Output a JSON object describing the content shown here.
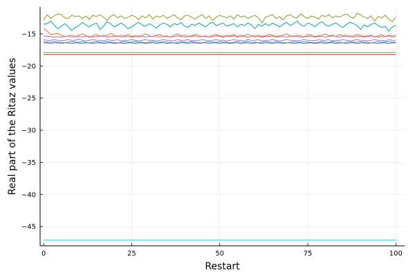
{
  "chart_data": {
    "type": "line",
    "title": "",
    "xlabel": "Restart",
    "ylabel": "Real part of the Ritaz values",
    "xlim": [
      -1,
      102.5
    ],
    "ylim": [
      -48.0,
      -10.8
    ],
    "xticks": [
      0,
      25,
      50,
      75,
      100
    ],
    "yticks": [
      -15,
      -20,
      -25,
      -30,
      -35,
      -40,
      -45
    ],
    "grid": true,
    "legend": "none",
    "colors": {
      "olive": "#8b9a1c",
      "teal": "#00a4a8",
      "orange": "#d2782c",
      "pink": "#e0608e",
      "purple": "#8a7ad6",
      "blue": "#4a88c8",
      "gray": "#6a6e72",
      "green": "#5aa654",
      "red": "#d04a38",
      "cyan": "#46c6e6"
    },
    "series": [
      {
        "color_key": "olive",
        "y": [
          -12.8,
          -12.0,
          -12.6,
          -12.2,
          -11.9,
          -12.0,
          -12.5,
          -12.6,
          -12.1,
          -12.3,
          -12.2,
          -12.6,
          -12.2,
          -12.8,
          -12.1,
          -12.3,
          -12.0,
          -12.4,
          -12.9,
          -12.3,
          -12.0,
          -12.5,
          -12.2,
          -12.6,
          -12.4,
          -12.1,
          -12.3,
          -12.8,
          -12.2,
          -12.5,
          -12.0,
          -12.7,
          -12.2,
          -12.4,
          -12.1,
          -12.6,
          -12.3,
          -12.0,
          -12.5,
          -12.8,
          -12.2,
          -12.1,
          -12.4,
          -12.7,
          -12.3,
          -12.0,
          -12.6,
          -12.2,
          -12.9,
          -12.4,
          -12.1,
          -12.3,
          -12.5,
          -12.2,
          -12.7,
          -12.0,
          -12.4,
          -12.2,
          -12.6,
          -12.3,
          -12.1,
          -12.5,
          -13.3,
          -12.4,
          -12.2,
          -12.0,
          -12.6,
          -12.3,
          -12.8,
          -12.2,
          -12.0,
          -12.4,
          -12.5,
          -11.9,
          -12.3,
          -12.6,
          -12.2,
          -12.4,
          -12.7,
          -12.1,
          -12.3,
          -12.0,
          -12.5,
          -12.2,
          -12.4,
          -12.1,
          -11.9,
          -12.3,
          -12.6,
          -11.8,
          -12.0,
          -12.4,
          -12.6,
          -12.2,
          -13.0,
          -12.3,
          -12.5,
          -12.1,
          -12.7,
          -13.1,
          -12.4
        ]
      },
      {
        "color_key": "teal",
        "y": [
          -13.5,
          -13.4,
          -13.0,
          -13.6,
          -14.2,
          -13.8,
          -13.4,
          -13.9,
          -14.5,
          -14.0,
          -13.7,
          -13.2,
          -13.6,
          -13.9,
          -13.5,
          -13.3,
          -14.3,
          -13.8,
          -13.1,
          -13.4,
          -13.9,
          -13.6,
          -13.3,
          -13.7,
          -14.2,
          -13.9,
          -13.5,
          -13.2,
          -13.6,
          -13.8,
          -13.4,
          -13.7,
          -14.1,
          -13.6,
          -13.3,
          -13.5,
          -13.9,
          -13.4,
          -13.6,
          -13.2,
          -13.8,
          -14.0,
          -13.5,
          -13.7,
          -13.3,
          -13.6,
          -13.9,
          -13.4,
          -13.2,
          -13.7,
          -13.5,
          -13.3,
          -13.8,
          -13.6,
          -13.4,
          -13.9,
          -13.5,
          -13.7,
          -13.3,
          -13.6,
          -14.2,
          -13.5,
          -13.8,
          -13.4,
          -13.7,
          -13.3,
          -13.6,
          -13.9,
          -13.5,
          -13.2,
          -13.7,
          -13.4,
          -13.0,
          -13.6,
          -13.8,
          -13.3,
          -13.5,
          -13.9,
          -13.4,
          -13.1,
          -13.6,
          -13.8,
          -13.5,
          -13.3,
          -13.7,
          -14.0,
          -13.5,
          -13.2,
          -13.4,
          -13.7,
          -14.3,
          -13.6,
          -13.9,
          -13.5,
          -13.3,
          -13.7,
          -14.0,
          -13.8,
          -14.6,
          -13.9,
          -13.7
        ]
      },
      {
        "color_key": "orange",
        "y": [
          -14.2,
          -14.6,
          -15.1,
          -15.0,
          -14.9,
          -15.2,
          -15.4,
          -15.3,
          -15.2,
          -15.4,
          -15.2,
          -15.0,
          -15.3,
          -15.5,
          -15.3,
          -15.1,
          -15.4,
          -15.2,
          -15.3,
          -14.9,
          -15.2,
          -15.4,
          -15.2,
          -15.3,
          -15.1,
          -15.4,
          -15.3,
          -15.5,
          -15.2,
          -15.0,
          -15.3,
          -15.4,
          -15.2,
          -15.1,
          -15.4,
          -15.3,
          -15.5,
          -15.2,
          -15.0,
          -15.3,
          -15.2,
          -15.4,
          -15.3,
          -15.1,
          -15.2,
          -15.4,
          -15.3,
          -15.5,
          -15.2,
          -15.1,
          -15.3,
          -15.4,
          -15.2,
          -15.3,
          -15.1,
          -15.4,
          -15.2,
          -15.3,
          -15.0,
          -15.3,
          -15.5,
          -15.2,
          -15.4,
          -15.3,
          -15.1,
          -15.2,
          -15.4,
          -15.3,
          -15.2,
          -15.0,
          -15.3,
          -15.4,
          -15.2,
          -15.3,
          -15.5,
          -15.1,
          -15.2,
          -15.4,
          -15.3,
          -15.2,
          -15.0,
          -15.3,
          -15.2,
          -15.4,
          -15.1,
          -15.3,
          -15.2,
          -15.5,
          -15.3,
          -15.1,
          -15.2,
          -15.4,
          -15.3,
          -15.2,
          -15.5,
          -15.3,
          -15.1,
          -15.4,
          -15.2,
          -15.3,
          -15.2
        ]
      },
      {
        "color_key": "pink",
        "y": [
          -15.3,
          -15.4,
          -15.4,
          -15.5,
          -15.4,
          -15.5,
          -15.4,
          -15.3,
          -15.5,
          -15.4,
          -15.4,
          -15.5,
          -15.3,
          -15.4,
          -15.5,
          -15.4,
          -15.3,
          -15.4,
          -15.5,
          -15.4,
          -15.4,
          -15.3,
          -15.5,
          -15.4,
          -15.4,
          -15.5,
          -15.4,
          -15.3,
          -15.4,
          -15.5,
          -15.4,
          -15.4,
          -15.3,
          -15.5,
          -15.4,
          -15.4,
          -15.5,
          -15.4,
          -15.3,
          -15.4,
          -15.5,
          -15.4,
          -15.4,
          -15.3,
          -15.5,
          -15.4,
          -15.4,
          -15.5,
          -15.4,
          -15.3,
          -15.4,
          -15.5,
          -15.4,
          -15.4,
          -15.3,
          -15.5,
          -15.4,
          -15.4,
          -15.5,
          -15.4,
          -15.3,
          -15.4,
          -15.5,
          -15.4,
          -15.4,
          -15.3,
          -15.5,
          -15.4,
          -15.4,
          -15.5,
          -15.4,
          -15.3,
          -15.4,
          -15.5,
          -15.4,
          -15.4,
          -15.3,
          -15.5,
          -15.4,
          -15.4,
          -15.5,
          -15.4,
          -15.3,
          -15.4,
          -15.5,
          -15.4,
          -15.4,
          -15.3,
          -15.5,
          -15.4,
          -15.4,
          -15.5,
          -15.4,
          -15.3,
          -15.4,
          -15.5,
          -15.4,
          -15.4,
          -15.3,
          -15.5,
          -15.4
        ]
      },
      {
        "color_key": "purple",
        "y": [
          -15.9,
          -16.0,
          -16.0,
          -15.9,
          -16.0,
          -16.1,
          -16.0,
          -15.9,
          -16.0,
          -16.0,
          -15.8,
          -16.0,
          -16.1,
          -16.0,
          -15.9,
          -16.0,
          -16.0,
          -16.1,
          -15.9,
          -16.0,
          -16.0,
          -15.9,
          -16.1,
          -16.0,
          -16.0,
          -15.9,
          -16.0,
          -16.1,
          -16.0,
          -15.9,
          -16.0,
          -16.0,
          -16.1,
          -16.0,
          -15.9,
          -16.0,
          -16.0,
          -16.1,
          -15.9,
          -16.0,
          -16.0,
          -15.9,
          -16.1,
          -16.0,
          -16.0,
          -15.9,
          -16.0,
          -16.1,
          -16.0,
          -15.9,
          -16.0,
          -16.0,
          -16.1,
          -16.0,
          -15.9,
          -16.0,
          -16.0,
          -16.1,
          -15.9,
          -16.0,
          -16.0,
          -15.9,
          -16.1,
          -16.0,
          -16.0,
          -15.9,
          -16.0,
          -16.1,
          -16.0,
          -15.9,
          -16.0,
          -16.0,
          -16.1,
          -16.0,
          -15.9,
          -16.0,
          -16.0,
          -16.1,
          -15.9,
          -16.0,
          -16.0,
          -15.9,
          -16.1,
          -16.0,
          -16.0,
          -15.9,
          -16.0,
          -16.1,
          -16.0,
          -15.9,
          -16.0,
          -16.0,
          -16.1,
          -16.0,
          -15.9,
          -16.0,
          -16.0,
          -16.1,
          -15.9,
          -16.0,
          -16.0
        ]
      },
      {
        "color_key": "blue",
        "y": [
          -16.2,
          -16.3,
          -16.3,
          -16.2,
          -16.3,
          -16.3,
          -16.4,
          -16.3,
          -16.2,
          -16.3,
          -16.3,
          -16.2,
          -16.3,
          -16.4,
          -16.3,
          -16.2,
          -16.3,
          -16.3,
          -16.2,
          -16.3,
          -16.3,
          -16.4,
          -16.3,
          -16.2,
          -16.3,
          -16.3,
          -16.2,
          -16.3,
          -16.3,
          -16.4,
          -16.3,
          -16.2,
          -16.3,
          -16.3,
          -16.2,
          -16.3,
          -16.3,
          -16.4,
          -16.3,
          -16.2,
          -16.3,
          -16.3,
          -16.2,
          -16.3,
          -16.3,
          -16.4,
          -16.3,
          -16.2,
          -16.3,
          -16.3,
          -16.2,
          -16.3,
          -16.3,
          -16.4,
          -16.3,
          -16.2,
          -16.3,
          -16.3,
          -16.2,
          -16.3,
          -16.3,
          -16.4,
          -16.3,
          -16.2,
          -16.3,
          -16.3,
          -16.2,
          -16.3,
          -16.3,
          -16.4,
          -16.3,
          -16.2,
          -16.3,
          -16.3,
          -16.2,
          -16.3,
          -16.3,
          -16.4,
          -16.3,
          -16.2,
          -16.3,
          -16.3,
          -16.2,
          -16.3,
          -16.3,
          -16.4,
          -16.3,
          -16.2,
          -16.3,
          -16.3,
          -16.2,
          -16.3,
          -16.3,
          -16.4,
          -16.3,
          -16.2,
          -16.3,
          -16.3,
          -16.2,
          -16.3,
          -16.3
        ]
      },
      {
        "color_key": "gray",
        "y": [
          -16.4,
          -16.4,
          -16.5,
          -16.4,
          -16.4,
          -16.5,
          -16.4,
          -16.4,
          -16.5,
          -16.4,
          -16.4,
          -16.5,
          -16.4,
          -16.4,
          -16.5,
          -16.4,
          -16.4,
          -16.5,
          -16.4,
          -16.4,
          -16.5,
          -16.4,
          -16.4,
          -16.5,
          -16.4,
          -16.4,
          -16.5,
          -16.4,
          -16.4,
          -16.5,
          -16.4,
          -16.4,
          -16.5,
          -16.4,
          -16.4,
          -16.5,
          -16.4,
          -16.4,
          -16.5,
          -16.4,
          -16.4,
          -16.5,
          -16.4,
          -16.4,
          -16.5,
          -16.4,
          -16.4,
          -16.5,
          -16.4,
          -16.4,
          -16.5,
          -16.4,
          -16.4,
          -16.5,
          -16.4,
          -16.4,
          -16.5,
          -16.4,
          -16.4,
          -16.5,
          -16.4,
          -16.4,
          -16.5,
          -16.4,
          -16.4,
          -16.5,
          -16.4,
          -16.4,
          -16.5,
          -16.4,
          -16.4,
          -16.5,
          -16.4,
          -16.4,
          -16.5,
          -16.4,
          -16.4,
          -16.5,
          -16.4,
          -16.4,
          -16.5,
          -16.4,
          -16.4,
          -16.5,
          -16.4,
          -16.4,
          -16.5,
          -16.4,
          -16.4,
          -16.5,
          -16.4,
          -16.4,
          -16.5,
          -16.4,
          -16.4,
          -16.5,
          -16.4,
          -16.4,
          -16.5,
          -16.4,
          -16.4
        ]
      },
      {
        "color_key": "green",
        "y": [
          -17.9,
          -17.9,
          -17.9,
          -17.9,
          -17.9,
          -17.9,
          -17.9,
          -17.9,
          -17.9,
          -17.9,
          -17.9,
          -17.9,
          -17.9,
          -17.9,
          -17.9,
          -17.9,
          -17.9,
          -17.9,
          -17.9,
          -17.9,
          -17.9,
          -17.9,
          -17.9,
          -17.9,
          -17.9,
          -17.9,
          -17.9,
          -17.9,
          -17.9,
          -17.9,
          -17.9,
          -17.9,
          -17.9,
          -17.9,
          -17.9,
          -17.9,
          -17.9,
          -17.9,
          -17.9,
          -17.9,
          -17.9,
          -17.9,
          -17.9,
          -17.9,
          -17.9,
          -17.9,
          -17.9,
          -17.9,
          -17.9,
          -17.9,
          -17.9,
          -17.9,
          -17.9,
          -17.9,
          -17.9,
          -17.9,
          -17.9,
          -17.9,
          -17.9,
          -17.9,
          -17.9,
          -17.9,
          -17.9,
          -17.9,
          -17.9,
          -17.9,
          -17.9,
          -17.9,
          -17.9,
          -17.9,
          -17.9,
          -17.9,
          -17.9,
          -17.9,
          -17.9,
          -17.9,
          -17.9,
          -17.9,
          -17.9,
          -17.9,
          -17.9,
          -17.9,
          -17.9,
          -17.9,
          -17.9,
          -17.9,
          -17.9,
          -17.9,
          -17.9,
          -17.9,
          -17.9,
          -17.9,
          -17.9,
          -17.9,
          -17.9,
          -17.9,
          -17.9,
          -17.9,
          -17.9,
          -17.9,
          -17.9
        ]
      },
      {
        "color_key": "red",
        "y": [
          -18.2,
          -18.2,
          -18.2,
          -18.2,
          -18.2,
          -18.2,
          -18.2,
          -18.2,
          -18.2,
          -18.2,
          -18.2,
          -18.2,
          -18.2,
          -18.2,
          -18.2,
          -18.2,
          -18.2,
          -18.2,
          -18.2,
          -18.2,
          -18.2,
          -18.2,
          -18.2,
          -18.2,
          -18.2,
          -18.2,
          -18.2,
          -18.2,
          -18.2,
          -18.2,
          -18.2,
          -18.2,
          -18.2,
          -18.2,
          -18.2,
          -18.2,
          -18.2,
          -18.2,
          -18.2,
          -18.2,
          -18.2,
          -18.2,
          -18.2,
          -18.2,
          -18.2,
          -18.2,
          -18.2,
          -18.2,
          -18.2,
          -18.2,
          -18.2,
          -18.2,
          -18.2,
          -18.2,
          -18.2,
          -18.2,
          -18.2,
          -18.2,
          -18.2,
          -18.2,
          -18.2,
          -18.2,
          -18.2,
          -18.2,
          -18.2,
          -18.2,
          -18.2,
          -18.2,
          -18.2,
          -18.2,
          -18.2,
          -18.2,
          -18.2,
          -18.2,
          -18.2,
          -18.2,
          -18.2,
          -18.2,
          -18.2,
          -18.2,
          -18.2,
          -18.2,
          -18.2,
          -18.2,
          -18.2,
          -18.2,
          -18.2,
          -18.2,
          -18.2,
          -18.2,
          -18.2,
          -18.2,
          -18.2,
          -18.2,
          -18.2,
          -18.2,
          -18.2,
          -18.2,
          -18.2,
          -18.2,
          -18.2
        ]
      },
      {
        "color_key": "cyan",
        "y": [
          -47.1,
          -47.1,
          -47.1,
          -47.1,
          -47.1,
          -47.1,
          -47.1,
          -47.1,
          -47.1,
          -47.1,
          -47.1,
          -47.1,
          -47.1,
          -47.1,
          -47.1,
          -47.1,
          -47.1,
          -47.1,
          -47.1,
          -47.1,
          -47.1,
          -47.1,
          -47.1,
          -47.1,
          -47.1,
          -47.1,
          -47.1,
          -47.1,
          -47.1,
          -47.1,
          -47.1,
          -47.1,
          -47.1,
          -47.1,
          -47.1,
          -47.1,
          -47.1,
          -47.1,
          -47.1,
          -47.1,
          -47.1,
          -47.1,
          -47.1,
          -47.1,
          -47.1,
          -47.1,
          -47.1,
          -47.1,
          -47.1,
          -47.1,
          -47.1,
          -47.1,
          -47.1,
          -47.1,
          -47.1,
          -47.1,
          -47.1,
          -47.1,
          -47.1,
          -47.1,
          -47.1,
          -47.1,
          -47.1,
          -47.1,
          -47.1,
          -47.1,
          -47.1,
          -47.1,
          -47.1,
          -47.1,
          -47.1,
          -47.1,
          -47.1,
          -47.1,
          -47.1,
          -47.1,
          -47.1,
          -47.1,
          -47.1,
          -47.1,
          -47.1,
          -47.1,
          -47.1,
          -47.1,
          -47.1,
          -47.1,
          -47.1,
          -47.1,
          -47.1,
          -47.1,
          -47.1,
          -47.1,
          -47.1,
          -47.1,
          -47.1,
          -47.1,
          -47.1,
          -47.1,
          -47.1,
          -47.1,
          -47.1
        ]
      }
    ]
  }
}
